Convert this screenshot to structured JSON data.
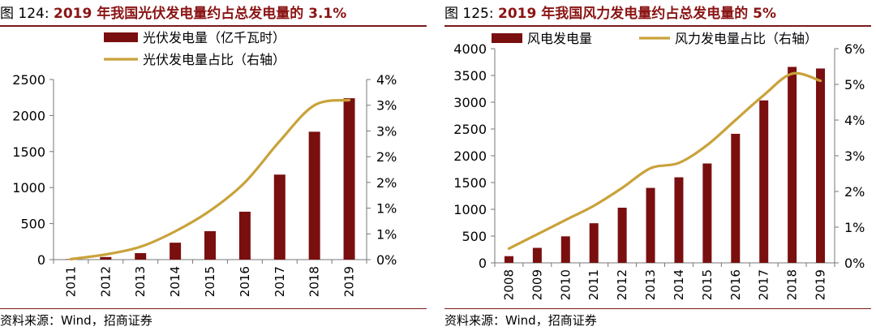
{
  "figures": [
    {
      "number": "图 124:",
      "title": "2019 年我国光伏发电量约占总发电量的 3.1%",
      "source": "资料来源：Wind，招商证券"
    },
    {
      "number": "图 125:",
      "title": "2019 年我国风力发电量约占总发电量的 5%",
      "source": "资料来源：Wind，招商证券"
    }
  ],
  "colors": {
    "bar": "#7a0f0f",
    "line": "#c9a23a",
    "title": "#8b1414"
  },
  "chart_data": [
    {
      "type": "bar",
      "categories": [
        "2011",
        "2012",
        "2013",
        "2014",
        "2015",
        "2016",
        "2017",
        "2018",
        "2019"
      ],
      "series": [
        {
          "name": "光伏发电量（亿千瓦时）",
          "type": "bar",
          "axis": "left",
          "values": [
            6,
            36,
            90,
            235,
            395,
            665,
            1180,
            1775,
            2240
          ]
        },
        {
          "name": "光伏发电量占比（右轴）",
          "type": "line",
          "axis": "right",
          "values": [
            0.01,
            0.1,
            0.25,
            0.55,
            0.95,
            1.5,
            2.3,
            3.0,
            3.1
          ]
        }
      ],
      "ylim": [
        0,
        2500
      ],
      "yticks": [
        "0",
        "500",
        "1000",
        "1500",
        "2000",
        "2500"
      ],
      "y2lim": [
        0,
        3.5
      ],
      "y2ticks": [
        "0%",
        "1%",
        "1%",
        "2%",
        "2%",
        "3%",
        "3%",
        "4%"
      ],
      "legend": "top"
    },
    {
      "type": "bar",
      "categories": [
        "2008",
        "2009",
        "2010",
        "2011",
        "2012",
        "2013",
        "2014",
        "2015",
        "2016",
        "2017",
        "2018",
        "2019"
      ],
      "series": [
        {
          "name": "风电发电量",
          "type": "bar",
          "axis": "left",
          "values": [
            125,
            280,
            495,
            740,
            1030,
            1400,
            1598,
            1856,
            2410,
            3034,
            3660,
            3630
          ]
        },
        {
          "name": "风力发电量占比（右轴）",
          "type": "line",
          "axis": "right",
          "values": [
            0.4,
            0.8,
            1.2,
            1.6,
            2.1,
            2.65,
            2.8,
            3.3,
            4.0,
            4.7,
            5.3,
            5.1
          ]
        }
      ],
      "ylim": [
        0,
        4000
      ],
      "yticks": [
        "0",
        "500",
        "1000",
        "1500",
        "2000",
        "2500",
        "3000",
        "3500",
        "4000"
      ],
      "y2lim": [
        0,
        6
      ],
      "y2ticks": [
        "0%",
        "1%",
        "2%",
        "3%",
        "4%",
        "5%",
        "6%"
      ],
      "legend": "top"
    }
  ]
}
